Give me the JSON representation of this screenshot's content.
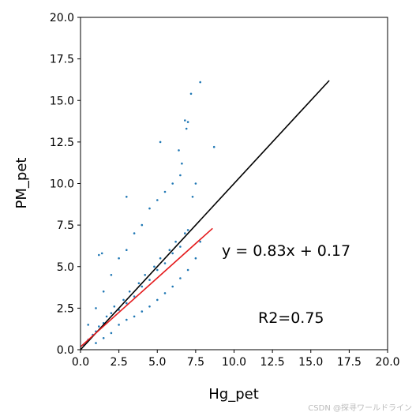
{
  "chart_data": {
    "type": "scatter",
    "xlabel": "Hg_pet",
    "ylabel": "PM_pet",
    "xlim": [
      0,
      20
    ],
    "ylim": [
      0,
      20
    ],
    "xticks": [
      "0.0",
      "2.5",
      "5.0",
      "7.5",
      "10.0",
      "12.5",
      "15.0",
      "17.5",
      "20.0"
    ],
    "yticks": [
      "0.0",
      "2.5",
      "5.0",
      "7.5",
      "10.0",
      "12.5",
      "15.0",
      "17.5",
      "20.0"
    ],
    "grid": false,
    "point_color": "#1f77b4",
    "points": [
      [
        0.2,
        0.3
      ],
      [
        0.5,
        0.6
      ],
      [
        0.8,
        0.9
      ],
      [
        1.0,
        1.1
      ],
      [
        1.2,
        1.4
      ],
      [
        1.5,
        1.6
      ],
      [
        1.7,
        2.0
      ],
      [
        2.0,
        2.2
      ],
      [
        2.2,
        2.6
      ],
      [
        2.5,
        2.4
      ],
      [
        2.8,
        3.0
      ],
      [
        3.0,
        2.8
      ],
      [
        3.2,
        3.5
      ],
      [
        3.5,
        3.2
      ],
      [
        3.8,
        4.0
      ],
      [
        4.0,
        3.8
      ],
      [
        4.2,
        4.5
      ],
      [
        4.5,
        4.2
      ],
      [
        4.8,
        5.0
      ],
      [
        5.0,
        4.8
      ],
      [
        5.2,
        5.5
      ],
      [
        5.5,
        5.2
      ],
      [
        5.8,
        6.0
      ],
      [
        6.0,
        5.8
      ],
      [
        6.2,
        6.5
      ],
      [
        6.5,
        6.2
      ],
      [
        6.8,
        7.0
      ],
      [
        7.0,
        7.2
      ],
      [
        1.5,
        3.5
      ],
      [
        2.0,
        4.5
      ],
      [
        2.5,
        5.5
      ],
      [
        3.0,
        6.0
      ],
      [
        3.5,
        7.0
      ],
      [
        4.0,
        7.5
      ],
      [
        4.5,
        8.5
      ],
      [
        5.0,
        9.0
      ],
      [
        5.5,
        9.5
      ],
      [
        6.0,
        10.0
      ],
      [
        6.5,
        10.5
      ],
      [
        2.5,
        1.5
      ],
      [
        3.0,
        1.8
      ],
      [
        3.5,
        2.0
      ],
      [
        4.0,
        2.3
      ],
      [
        4.5,
        2.6
      ],
      [
        5.0,
        3.0
      ],
      [
        5.5,
        3.4
      ],
      [
        6.0,
        3.8
      ],
      [
        6.5,
        4.3
      ],
      [
        7.0,
        4.8
      ],
      [
        7.5,
        5.5
      ],
      [
        7.8,
        6.5
      ],
      [
        1.0,
        0.4
      ],
      [
        1.5,
        0.7
      ],
      [
        2.0,
        1.0
      ],
      [
        0.5,
        1.5
      ],
      [
        1.0,
        2.5
      ],
      [
        5.2,
        12.5
      ],
      [
        6.4,
        12.0
      ],
      [
        6.6,
        11.2
      ],
      [
        6.8,
        13.8
      ],
      [
        7.0,
        13.7
      ],
      [
        7.2,
        15.4
      ],
      [
        7.8,
        16.1
      ],
      [
        6.9,
        13.3
      ],
      [
        8.7,
        12.2
      ],
      [
        3.0,
        9.2
      ],
      [
        1.2,
        5.7
      ],
      [
        1.4,
        5.8
      ],
      [
        7.5,
        10.0
      ],
      [
        7.3,
        9.2
      ]
    ],
    "lines": [
      {
        "label": "black-fit",
        "color": "#000000",
        "x": [
          0.0,
          16.2
        ],
        "y": [
          0.0,
          16.2
        ]
      },
      {
        "label": "red-fit",
        "color": "#e41a1c",
        "x": [
          0.0,
          8.6
        ],
        "y": [
          0.17,
          7.3
        ]
      }
    ],
    "annotations": {
      "equation": "y = 0.83x + 0.17",
      "r2": "R2=0.75"
    }
  },
  "watermark": "CSDN @探寻ワールドライン"
}
